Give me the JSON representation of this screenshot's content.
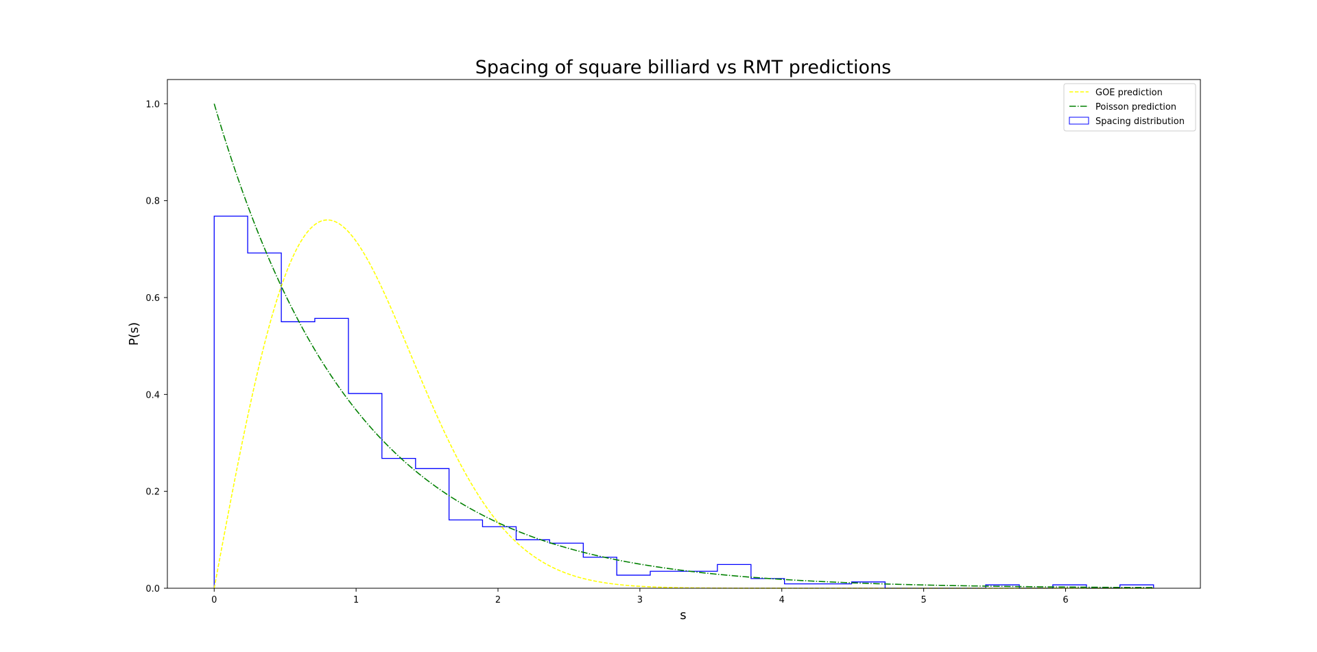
{
  "chart_data": {
    "type": "line",
    "title": "Spacing of square billiard vs RMT predictions",
    "xlabel": "s",
    "ylabel": "P(s)",
    "xlim": [
      -0.33,
      6.95
    ],
    "ylim": [
      0.0,
      1.05
    ],
    "xticks": [
      0,
      1,
      2,
      3,
      4,
      5,
      6
    ],
    "yticks": [
      0.0,
      0.2,
      0.4,
      0.6,
      0.8,
      1.0
    ],
    "ytick_labels": [
      "0.0",
      "0.2",
      "0.4",
      "0.6",
      "0.8",
      "1.0"
    ],
    "grid": false,
    "legend_position": "top-right",
    "series": [
      {
        "name": "GOE prediction",
        "kind": "curve",
        "formula": "(pi/2) * s * exp(-pi*s^2/4)",
        "x_range": [
          0,
          6.62
        ],
        "color": "#ffff00",
        "linestyle": "dashed"
      },
      {
        "name": "Poisson prediction",
        "kind": "curve",
        "formula": "exp(-s)",
        "x_range": [
          0,
          6.62
        ],
        "color": "#008000",
        "linestyle": "dashdot"
      },
      {
        "name": "Spacing distribution",
        "kind": "step_histogram",
        "color": "#0000ff",
        "bin_edges": [
          0.0,
          0.236,
          0.473,
          0.709,
          0.946,
          1.182,
          1.419,
          1.655,
          1.891,
          2.128,
          2.364,
          2.601,
          2.837,
          3.073,
          3.31,
          3.546,
          3.783,
          4.019,
          4.255,
          4.492,
          4.728,
          4.965,
          5.201,
          5.437,
          5.674,
          5.91,
          6.147,
          6.383,
          6.62
        ],
        "values": [
          0.768,
          0.692,
          0.55,
          0.557,
          0.402,
          0.268,
          0.247,
          0.141,
          0.127,
          0.1,
          0.093,
          0.064,
          0.027,
          0.035,
          0.035,
          0.049,
          0.02,
          0.009,
          0.009,
          0.013,
          0.0,
          0.0,
          0.0,
          0.007,
          0.0,
          0.007,
          0.0,
          0.007
        ]
      }
    ]
  }
}
